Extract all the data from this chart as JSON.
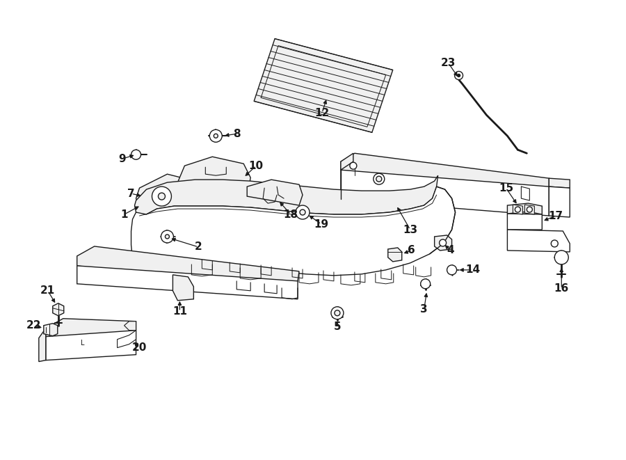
{
  "bg_color": "#ffffff",
  "line_color": "#1a1a1a",
  "fig_width": 9.0,
  "fig_height": 6.61,
  "dpi": 100,
  "label_fs": 11,
  "lw": 1.0
}
